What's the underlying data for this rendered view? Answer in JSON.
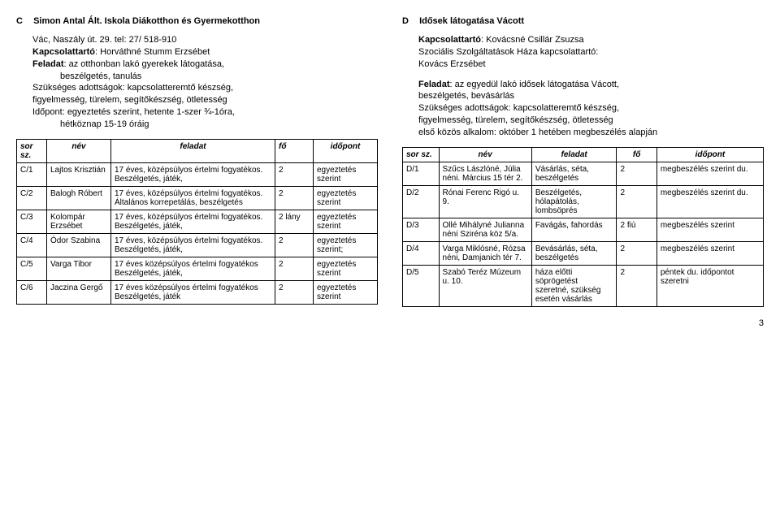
{
  "left": {
    "letter": "C",
    "title": "Simon Antal Ált. Iskola Diákotthon és Gyermekotthon",
    "address": "Vác, Naszály út. 29. tel: 27/ 518-910",
    "contact_label": "Kapcsolattartó",
    "contact": ": Horváthné Stumm Erzsébet",
    "task_label": "Feladat",
    "task": ": az otthonban lakó gyerekek látogatása,",
    "task_line2": "beszélgetés, tanulás",
    "skills_line1": "Szükséges adottságok: kapcsolatteremtő készség,",
    "skills_line2": "figyelmesség, türelem, segítőkészség, ötletesség",
    "time_line1": "Időpont: egyeztetés szerint, hetente 1-szer ¾-1óra,",
    "time_line2": "hétköznap 15-19 óráig",
    "th_sor": "sor sz.",
    "th_nev": "név",
    "th_fel": "feladat",
    "th_fo": "fő",
    "th_ido": "időpont",
    "rows": [
      {
        "sor": "C/1",
        "nev": "Lajtos Krisztián",
        "fel": "17 éves, középsúlyos értelmi fogyatékos. Beszélgetés, játék,",
        "fo": "2",
        "ido": "egyeztetés szerint"
      },
      {
        "sor": "C/2",
        "nev": "Balogh Róbert",
        "fel": "17 éves, középsúlyos értelmi fogyatékos. Általános korrepetálás, beszélgetés",
        "fo": "2",
        "ido": "egyeztetés szerint"
      },
      {
        "sor": "C/3",
        "nev": "Kolompár Erzsébet",
        "fel": "17 éves, középsúlyos értelmi fogyatékos. Beszélgetés, játék,",
        "fo": "2 lány",
        "ido": "egyeztetés szerint"
      },
      {
        "sor": "C/4",
        "nev": "Ódor Szabina",
        "fel": "17 éves, középsúlyos értelmi fogyatékos. Beszélgetés, játék,",
        "fo": "2",
        "ido": "egyeztetés szerint;"
      },
      {
        "sor": "C/5",
        "nev": "Varga Tibor",
        "fel": "17 éves középsúlyos értelmi fogyatékos Beszélgetés, játék,",
        "fo": "2",
        "ido": "egyeztetés szerint"
      },
      {
        "sor": "C/6",
        "nev": "Jaczina Gergő",
        "fel": "17 éves középsúlyos értelmi fogyatékos Beszélgetés, játék",
        "fo": "2",
        "ido": "egyeztetés szerint"
      }
    ]
  },
  "right": {
    "letter": "D",
    "title": "Idősek látogatása Vácott",
    "contact_label": "Kapcsolattartó",
    "contact": ": Kovácsné Csillár Zsuzsa",
    "contact_line2": "Szociális Szolgáltatások Háza kapcsolattartó:",
    "contact_line3": "Kovács Erzsébet",
    "task_label": "Feladat",
    "task": ": az egyedül lakó idősek látogatása Vácott,",
    "task_line2": "beszélgetés, bevásárlás",
    "skills_line1": "Szükséges adottságok: kapcsolatteremtő készség,",
    "skills_line2": "figyelmesség, türelem, segítőkészség, ötletesség",
    "time_line1": "első közös alkalom: október 1 hetében megbeszélés alapján",
    "th_sor": "sor sz.",
    "th_nev": "név",
    "th_fel": "feladat",
    "th_fo": "fő",
    "th_ido": "időpont",
    "rows": [
      {
        "sor": "D/1",
        "nev": "Szűcs Lászlóné, Júlia néni. Március 15 tér 2.",
        "fel": "Vásárlás, séta, beszélgetés",
        "fo": "2",
        "ido": "megbeszélés szerint du."
      },
      {
        "sor": "D/2",
        "nev": "Rónai Ferenc Rigó u. 9.",
        "fel": "Beszélgetés, hólapátolás, lombsöprés",
        "fo": "2",
        "ido": "megbeszélés szerint du."
      },
      {
        "sor": "D/3",
        "nev": "Ollé Mihályné Julianna néni Sziréna köz 5/a.",
        "fel": "Favágás, fahordás",
        "fo": "2 fiú",
        "ido": "megbeszélés szerint"
      },
      {
        "sor": "D/4",
        "nev": "Varga Miklósné, Rózsa néni, Damjanich tér 7.",
        "fel": "Bevásárlás, séta, beszélgetés",
        "fo": "2",
        "ido": "megbeszélés szerint"
      },
      {
        "sor": "D/5",
        "nev": "Szabó Teréz Múzeum u. 10.",
        "fel": "háza előtti söprögetést szeretné, szükség esetén vásárlás",
        "fo": "2",
        "ido": "péntek du. időpontot szeretni"
      }
    ]
  },
  "page_number": "3"
}
